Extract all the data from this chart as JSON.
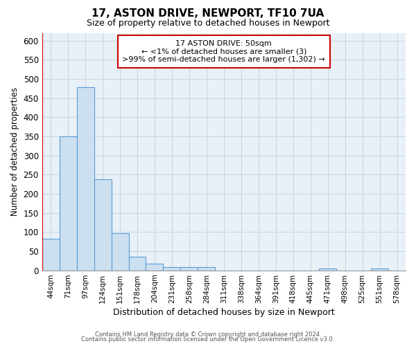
{
  "title": "17, ASTON DRIVE, NEWPORT, TF10 7UA",
  "subtitle": "Size of property relative to detached houses in Newport",
  "xlabel": "Distribution of detached houses by size in Newport",
  "ylabel": "Number of detached properties",
  "bar_color": "#cce0f0",
  "bar_edge_color": "#5b9bd5",
  "annotation_box_edge": "#cc0000",
  "red_line_color": "#cc0000",
  "grid_color": "#c8d4e0",
  "background_color": "#e8f0f8",
  "categories": [
    "44sqm",
    "71sqm",
    "97sqm",
    "124sqm",
    "151sqm",
    "178sqm",
    "204sqm",
    "231sqm",
    "258sqm",
    "284sqm",
    "311sqm",
    "338sqm",
    "364sqm",
    "391sqm",
    "418sqm",
    "445sqm",
    "471sqm",
    "498sqm",
    "525sqm",
    "551sqm",
    "578sqm"
  ],
  "values": [
    83,
    350,
    478,
    237,
    97,
    35,
    18,
    8,
    8,
    8,
    0,
    0,
    0,
    0,
    0,
    0,
    5,
    0,
    0,
    5,
    0
  ],
  "ylim": [
    0,
    620
  ],
  "yticks": [
    0,
    50,
    100,
    150,
    200,
    250,
    300,
    350,
    400,
    450,
    500,
    550,
    600
  ],
  "annotation_text": "17 ASTON DRIVE: 50sqm\n← <1% of detached houses are smaller (3)\n>99% of semi-detached houses are larger (1,302) →",
  "footnote1": "Contains HM Land Registry data © Crown copyright and database right 2024.",
  "footnote2": "Contains public sector information licensed under the Open Government Licence v3.0."
}
